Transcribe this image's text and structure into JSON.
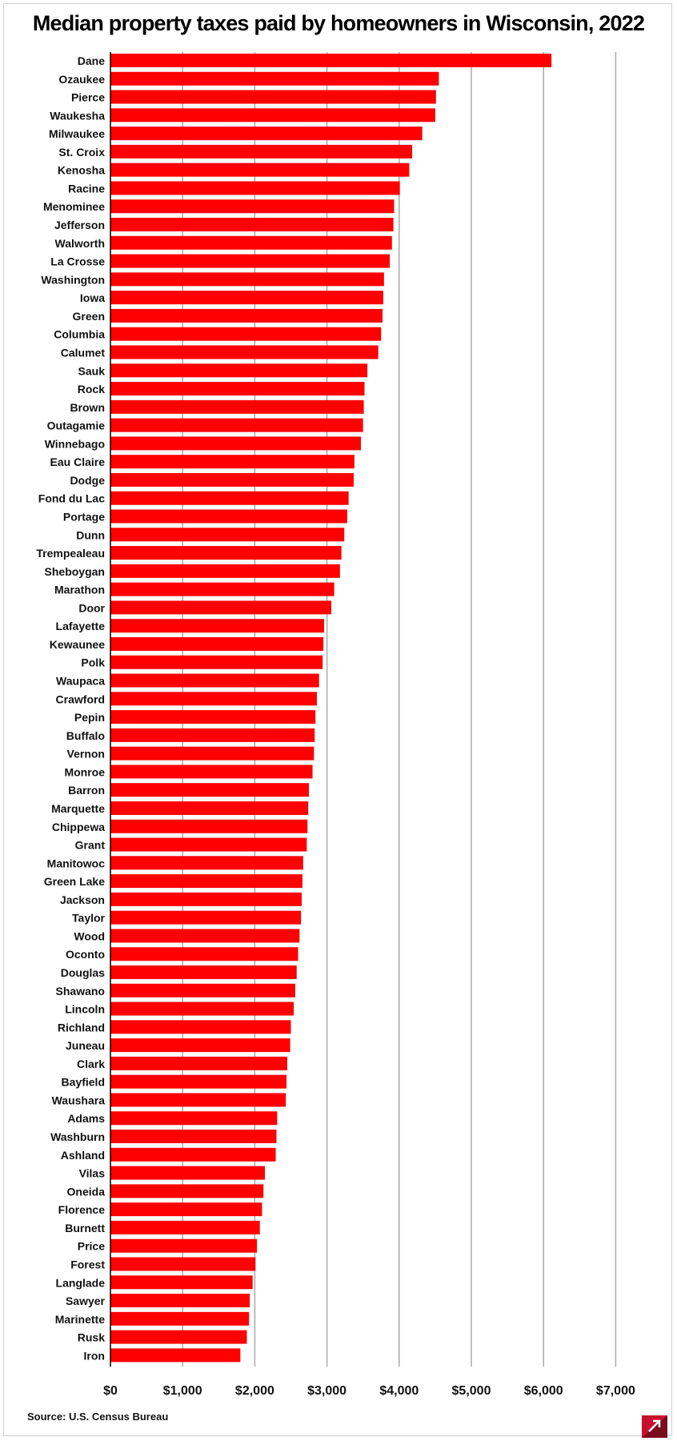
{
  "chart_data": {
    "type": "bar",
    "orientation": "horizontal",
    "title": "Median property taxes paid by homeowners in Wisconsin, 2022",
    "xlabel": "",
    "ylabel": "",
    "xlim": [
      0,
      7000
    ],
    "grid": true,
    "tick_values": [
      0,
      1000,
      2000,
      3000,
      4000,
      5000,
      6000,
      7000
    ],
    "tick_labels": [
      "$0",
      "$1,000",
      "$2,000",
      "$3,000",
      "$4,000",
      "$5,000",
      "$6,000",
      "$7,000"
    ],
    "bar_color": "#ff0000",
    "categories": [
      "Dane",
      "Ozaukee",
      "Pierce",
      "Waukesha",
      "Milwaukee",
      "St. Croix",
      "Kenosha",
      "Racine",
      "Menominee",
      "Jefferson",
      "Walworth",
      "La Crosse",
      "Washington",
      "Iowa",
      "Green",
      "Columbia",
      "Calumet",
      "Sauk",
      "Rock",
      "Brown",
      "Outagamie",
      "Winnebago",
      "Eau Claire",
      "Dodge",
      "Fond du Lac",
      "Portage",
      "Dunn",
      "Trempealeau",
      "Sheboygan",
      "Marathon",
      "Door",
      "Lafayette",
      "Kewaunee",
      "Polk",
      "Waupaca",
      "Crawford",
      "Pepin",
      "Buffalo",
      "Vernon",
      "Monroe",
      "Barron",
      "Marquette",
      "Chippewa",
      "Grant",
      "Manitowoc",
      "Green Lake",
      "Jackson",
      "Taylor",
      "Wood",
      "Oconto",
      "Douglas",
      "Shawano",
      "Lincoln",
      "Richland",
      "Juneau",
      "Clark",
      "Bayfield",
      "Waushara",
      "Adams",
      "Washburn",
      "Ashland",
      "Vilas",
      "Oneida",
      "Florence",
      "Burnett",
      "Price",
      "Forest",
      "Langlade",
      "Sawyer",
      "Marinette",
      "Rusk",
      "Iron"
    ],
    "values": [
      6110,
      4550,
      4510,
      4500,
      4320,
      4180,
      4140,
      4010,
      3930,
      3920,
      3900,
      3870,
      3790,
      3780,
      3770,
      3750,
      3710,
      3560,
      3520,
      3510,
      3500,
      3470,
      3380,
      3370,
      3300,
      3280,
      3240,
      3200,
      3180,
      3100,
      3060,
      2960,
      2950,
      2940,
      2890,
      2860,
      2840,
      2830,
      2820,
      2800,
      2750,
      2740,
      2730,
      2720,
      2670,
      2660,
      2650,
      2640,
      2620,
      2600,
      2580,
      2560,
      2540,
      2500,
      2490,
      2450,
      2440,
      2430,
      2310,
      2300,
      2290,
      2140,
      2120,
      2100,
      2070,
      2030,
      2010,
      1970,
      1930,
      1920,
      1890,
      1800
    ]
  },
  "source": "Source: U.S. Census Bureau",
  "logo_colors": {
    "primary": "#c8102e",
    "secondary": "#7a0c1d"
  }
}
